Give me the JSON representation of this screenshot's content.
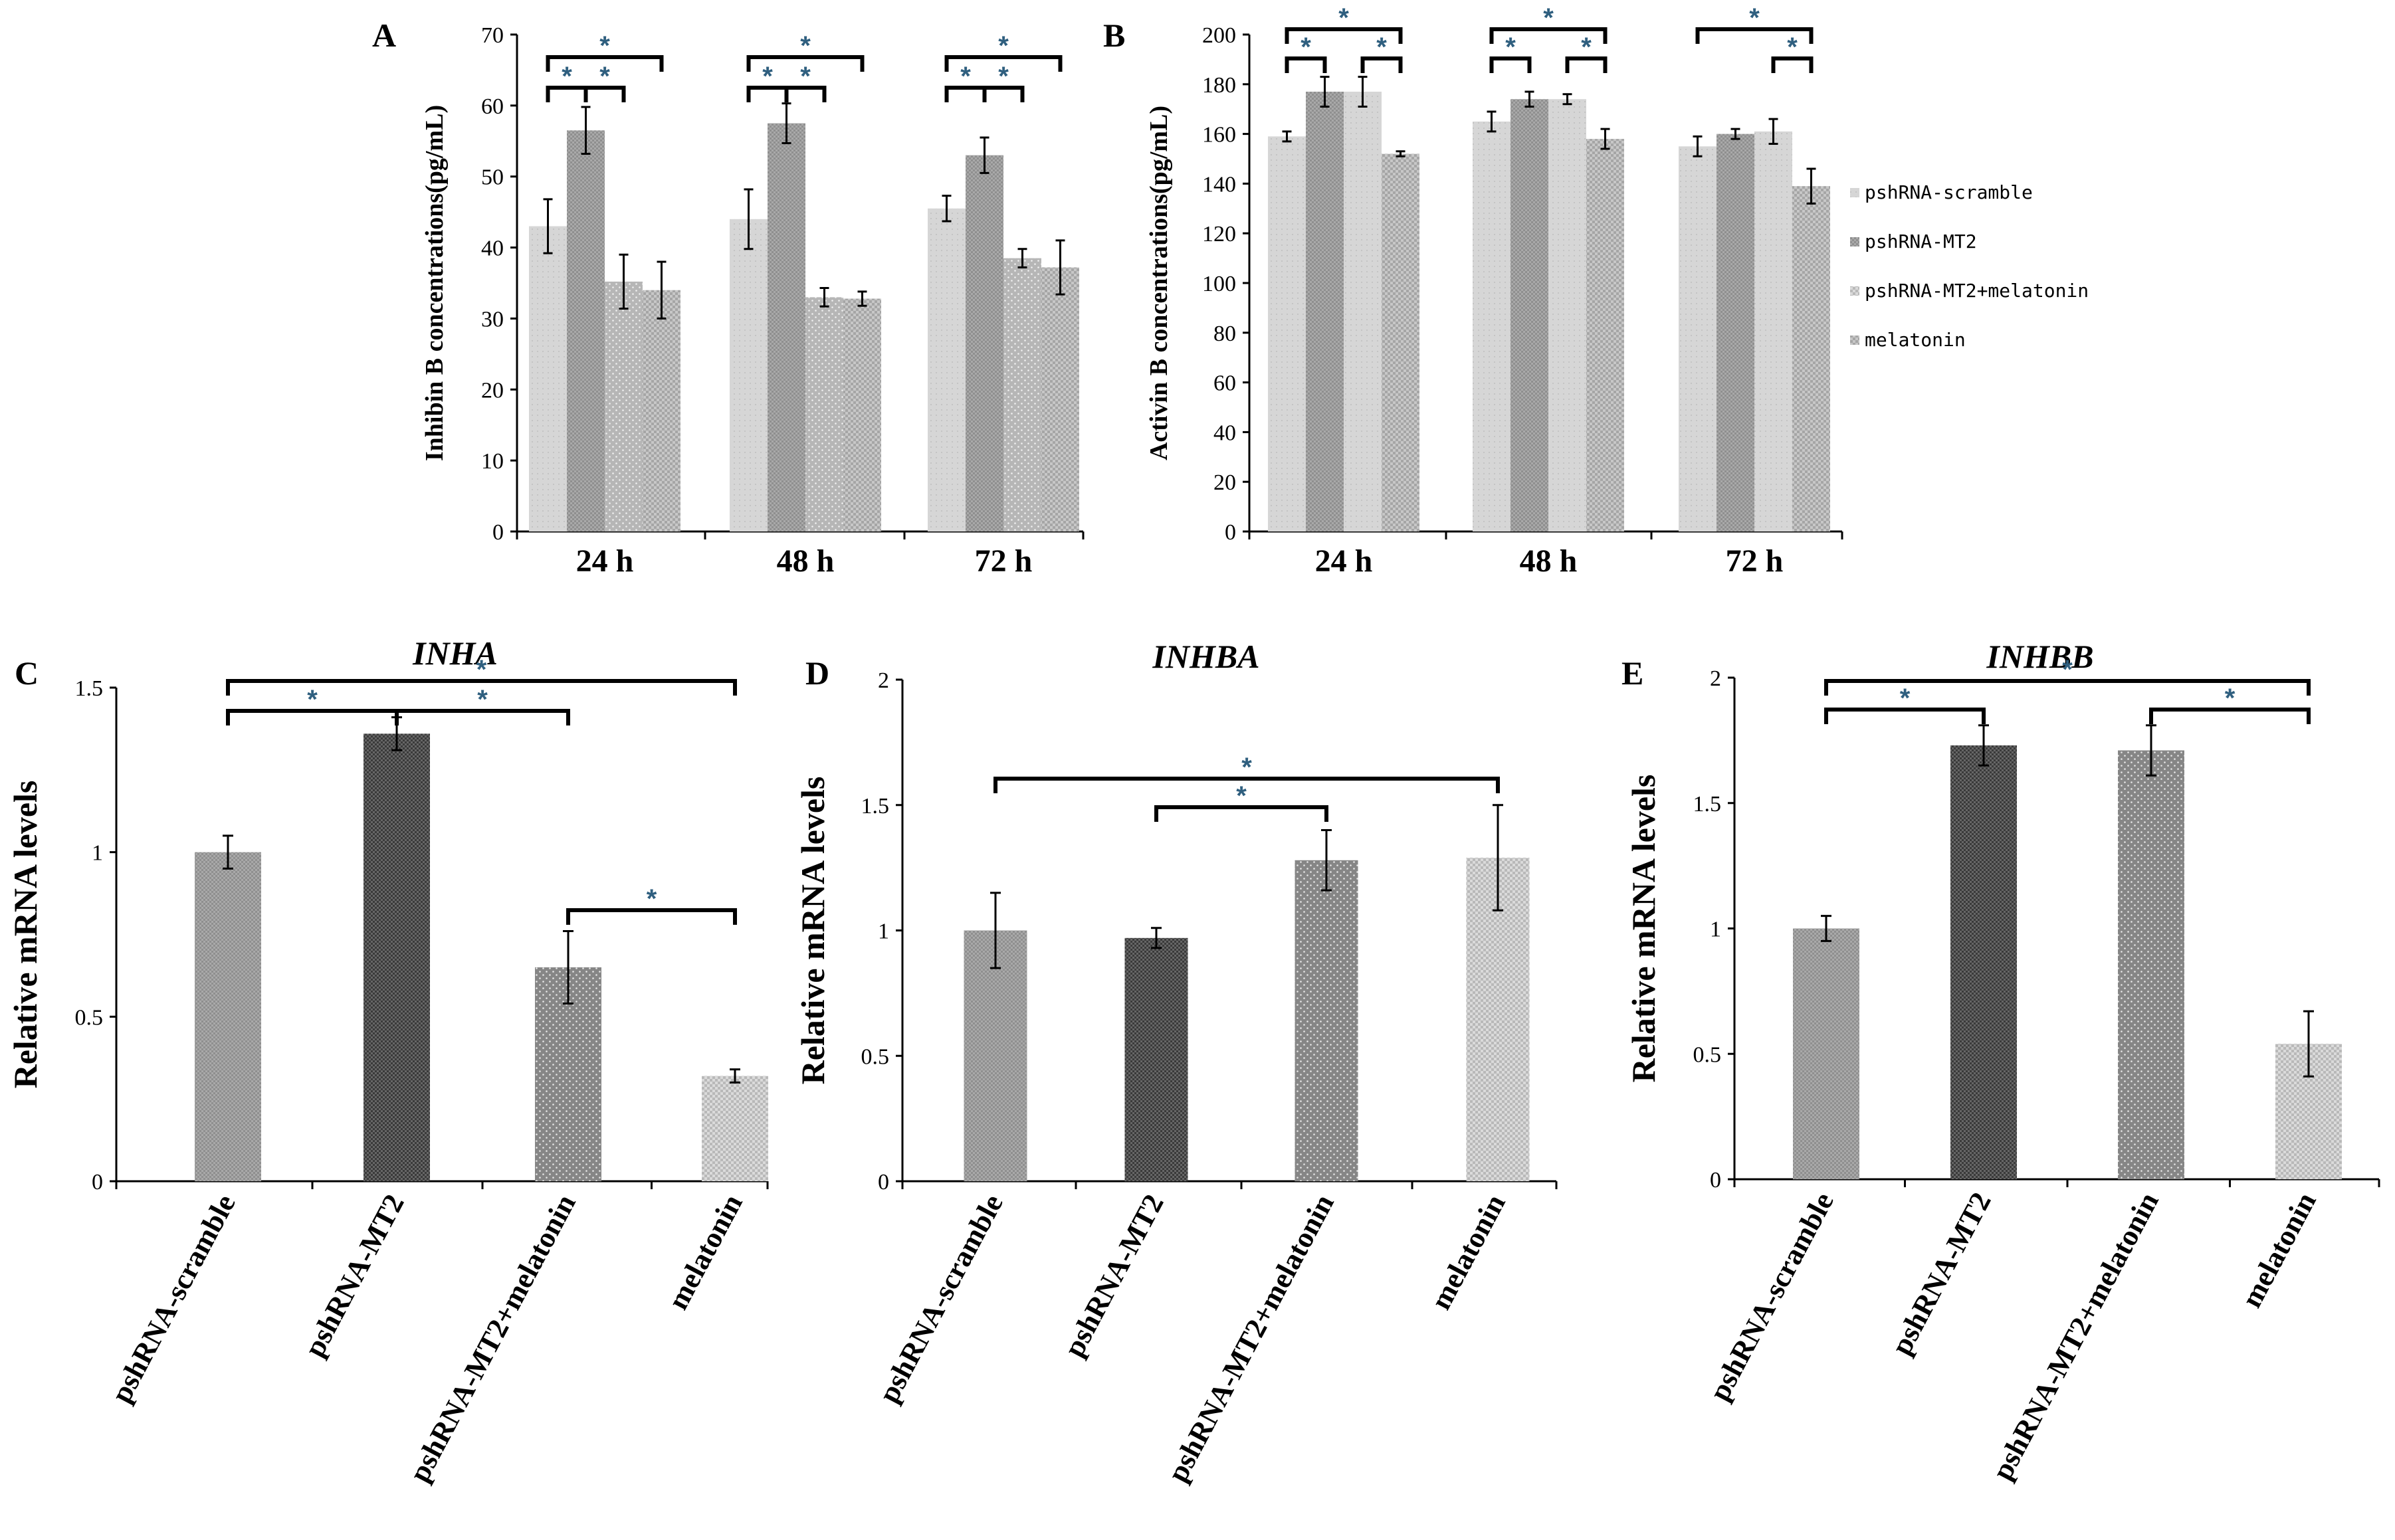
{
  "legend": [
    "pshRNA-scramble",
    "pshRNA-MT2",
    "pshRNA-MT2+melatonin",
    "melatonin"
  ],
  "chart_data": [
    {
      "panel": "A",
      "type": "bar",
      "title": "",
      "ylabel": "Inhibin B concentrations(pg/mL)",
      "xlabel": "",
      "ylim": [
        0,
        70
      ],
      "yticks": [
        0,
        10,
        20,
        30,
        40,
        50,
        60,
        70
      ],
      "categories": [
        "24 h",
        "48 h",
        "72 h"
      ],
      "series": [
        {
          "name": "pshRNA-scramble",
          "values": [
            43,
            44,
            45.5
          ],
          "errors": [
            3.8,
            4.2,
            1.8
          ]
        },
        {
          "name": "pshRNA-MT2",
          "values": [
            56.5,
            57.5,
            53
          ],
          "errors": [
            3.3,
            2.8,
            2.5
          ]
        },
        {
          "name": "pshRNA-MT2+melatonin",
          "values": [
            35.2,
            33,
            38.5
          ],
          "errors": [
            3.8,
            1.3,
            1.3
          ]
        },
        {
          "name": "melatonin",
          "values": [
            34,
            32.8,
            37.2
          ],
          "errors": [
            4,
            1,
            3.8
          ]
        }
      ],
      "significance": [
        {
          "label": "*",
          "group": 0,
          "from": 0,
          "to": 1,
          "level": 0
        },
        {
          "label": "*",
          "group": 0,
          "from": 1,
          "to": 2,
          "level": 0
        },
        {
          "label": "*",
          "group": 0,
          "from": 0,
          "to": 3,
          "level": 1
        },
        {
          "label": "*",
          "group": 1,
          "from": 0,
          "to": 1,
          "level": 0
        },
        {
          "label": "*",
          "group": 1,
          "from": 1,
          "to": 2,
          "level": 0
        },
        {
          "label": "*",
          "group": 1,
          "from": 0,
          "to": 3,
          "level": 1
        },
        {
          "label": "*",
          "group": 2,
          "from": 0,
          "to": 1,
          "level": 0
        },
        {
          "label": "*",
          "group": 2,
          "from": 1,
          "to": 2,
          "level": 0
        },
        {
          "label": "*",
          "group": 2,
          "from": 0,
          "to": 3,
          "level": 1
        }
      ]
    },
    {
      "panel": "B",
      "type": "bar",
      "title": "",
      "ylabel": "Activin B concentrations(pg/mL)",
      "xlabel": "",
      "ylim": [
        0,
        200
      ],
      "yticks": [
        0,
        20,
        40,
        60,
        80,
        100,
        120,
        140,
        160,
        180,
        200
      ],
      "categories": [
        "24 h",
        "48 h",
        "72 h"
      ],
      "series": [
        {
          "name": "pshRNA-scramble",
          "values": [
            159,
            165,
            155
          ],
          "errors": [
            2,
            4,
            4
          ]
        },
        {
          "name": "pshRNA-MT2",
          "values": [
            177,
            174,
            160
          ],
          "errors": [
            6,
            3,
            2
          ]
        },
        {
          "name": "pshRNA-MT2+melatonin",
          "values": [
            177,
            174,
            161
          ],
          "errors": [
            6,
            2,
            5
          ]
        },
        {
          "name": "melatonin",
          "values": [
            152,
            158,
            139
          ],
          "errors": [
            1,
            4,
            7
          ]
        }
      ],
      "significance": [
        {
          "label": "*",
          "group": 0,
          "from": 0,
          "to": 1,
          "level": 0
        },
        {
          "label": "*",
          "group": 0,
          "from": 2,
          "to": 3,
          "level": 0
        },
        {
          "label": "*",
          "group": 0,
          "from": 0,
          "to": 3,
          "level": 1
        },
        {
          "label": "*",
          "group": 1,
          "from": 0,
          "to": 1,
          "level": 0
        },
        {
          "label": "*",
          "group": 1,
          "from": 2,
          "to": 3,
          "level": 0
        },
        {
          "label": "*",
          "group": 1,
          "from": 0,
          "to": 3,
          "level": 1
        },
        {
          "label": "*",
          "group": 2,
          "from": 2,
          "to": 3,
          "level": 0
        },
        {
          "label": "*",
          "group": 2,
          "from": 0,
          "to": 3,
          "level": 1
        }
      ]
    },
    {
      "panel": "C",
      "type": "bar",
      "title": "INHA",
      "ylabel": "Relative mRNA levels",
      "xlabel": "",
      "ylim": [
        0,
        1.5
      ],
      "yticks": [
        0,
        0.5,
        1,
        1.5
      ],
      "ytick_labels": [
        "0",
        "0.5",
        "1",
        "1.5"
      ],
      "categories": [
        "pshRNA-scramble",
        "pshRNA-MT2",
        "pshRNA-MT2+melatonin",
        "melatonin"
      ],
      "values": [
        1.0,
        1.36,
        0.65,
        0.32
      ],
      "errors": [
        0.05,
        0.05,
        0.11,
        0.02
      ],
      "significance": [
        {
          "label": "*",
          "from": 0,
          "to": 1,
          "level": 0
        },
        {
          "label": "*",
          "from": 1,
          "to": 2,
          "level": 0
        },
        {
          "label": "*",
          "from": 0,
          "to": 3,
          "level": 1
        },
        {
          "label": "*",
          "from": 2,
          "to": 3,
          "level": -1
        }
      ]
    },
    {
      "panel": "D",
      "type": "bar",
      "title": "INHBA",
      "ylabel": "Relative mRNA levels",
      "xlabel": "",
      "ylim": [
        0,
        2
      ],
      "yticks": [
        0,
        0.5,
        1,
        1.5,
        2
      ],
      "ytick_labels": [
        "0",
        "0.5",
        "1",
        "1.5",
        "2"
      ],
      "categories": [
        "pshRNA-scramble",
        "pshRNA-MT2",
        "pshRNA-MT2+melatonin",
        "melatonin"
      ],
      "values": [
        1.0,
        0.97,
        1.28,
        1.29
      ],
      "errors": [
        0.15,
        0.04,
        0.12,
        0.21
      ],
      "significance": [
        {
          "label": "*",
          "from": 1,
          "to": 2,
          "level": 0
        },
        {
          "label": "*",
          "from": 0,
          "to": 3,
          "level": 1
        }
      ]
    },
    {
      "panel": "E",
      "type": "bar",
      "title": "INHBB",
      "ylabel": "Relative mRNA levels",
      "xlabel": "",
      "ylim": [
        0,
        2
      ],
      "yticks": [
        0,
        0.5,
        1,
        1.5,
        2
      ],
      "ytick_labels": [
        "0",
        "0.5",
        "1",
        "1.5",
        "2"
      ],
      "categories": [
        "pshRNA-scramble",
        "pshRNA-MT2",
        "pshRNA-MT2+melatonin",
        "melatonin"
      ],
      "values": [
        1.0,
        1.73,
        1.71,
        0.54
      ],
      "errors": [
        0.05,
        0.08,
        0.1,
        0.13
      ],
      "significance": [
        {
          "label": "*",
          "from": 0,
          "to": 1,
          "level": 0
        },
        {
          "label": "*",
          "from": 2,
          "to": 3,
          "level": 0
        },
        {
          "label": "*",
          "from": 0,
          "to": 3,
          "level": 1
        }
      ]
    }
  ]
}
